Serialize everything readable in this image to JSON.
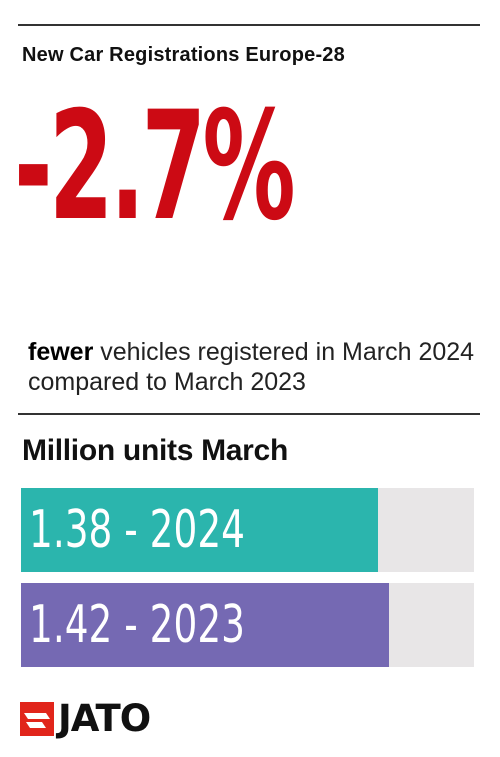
{
  "header": {
    "title": "New Car Registrations Europe-28"
  },
  "headline": {
    "value": "-2.7%"
  },
  "description": {
    "emphasis": "fewer",
    "text": " vehicles registered in March 2024 compared to March 2023"
  },
  "chart_data": {
    "type": "bar",
    "title": "Million units March",
    "orientation": "horizontal",
    "categories": [
      "2024",
      "2023"
    ],
    "values": [
      1.38,
      1.42
    ],
    "labels": [
      "1.38 - 2024",
      "1.42 - 2023"
    ],
    "xlim": [
      0,
      1.75
    ],
    "colors": [
      "#2bb5ad",
      "#7569b3"
    ],
    "track_color": "#e8e6e7",
    "grid": false
  },
  "brand": {
    "name": "JATO",
    "color": "#e1251b",
    "logo_icon": "jato-logo-icon"
  }
}
